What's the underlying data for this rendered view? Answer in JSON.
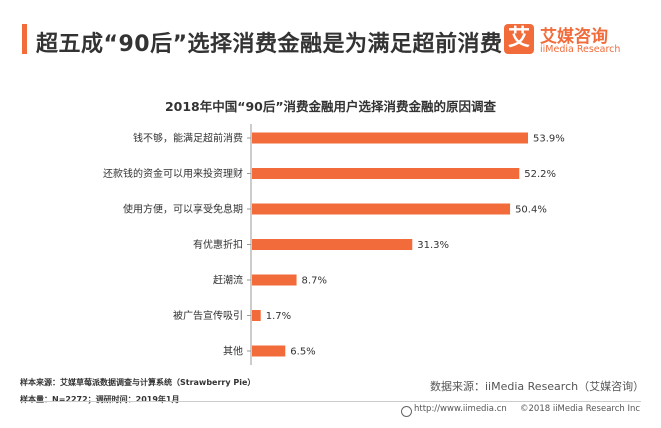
{
  "header": {
    "title": "超五成“90后”选择消费金融是为满足超前消费",
    "accent_color": "#f26b3a"
  },
  "logo": {
    "mark": "艾",
    "name": "艾媒咨询",
    "sub": "iiMedia Research"
  },
  "chart_data": {
    "type": "bar",
    "orientation": "horizontal",
    "title": "2018年中国“90后”消费金融用户选择消费金融的原因调查",
    "categories": [
      "钱不够，能满足超前消费",
      "还款钱的资金可以用来投资理财",
      "使用方便，可以享受免息期",
      "有优惠折扣",
      "赶潮流",
      "被广告宣传吸引",
      "其他"
    ],
    "values": [
      53.9,
      52.2,
      50.4,
      31.3,
      8.7,
      1.7,
      6.5
    ],
    "value_labels": [
      "53.9%",
      "52.2%",
      "50.4%",
      "31.3%",
      "8.7%",
      "1.7%",
      "6.5%"
    ],
    "xlim": [
      0,
      60
    ],
    "grid": false,
    "bar_color": "#f26b3a"
  },
  "footer": {
    "source_note": "样本来源：艾媒草莓派数据调查与计算系统（Strawberry Pie）",
    "sample_note": "样本量：N=2272；调研时间：2019年1月",
    "data_source": "数据来源：iiMedia Research（艾媒咨询）",
    "url": "http://www.iimedia.cn",
    "copyright": "©2018  iiMedia Research Inc"
  }
}
